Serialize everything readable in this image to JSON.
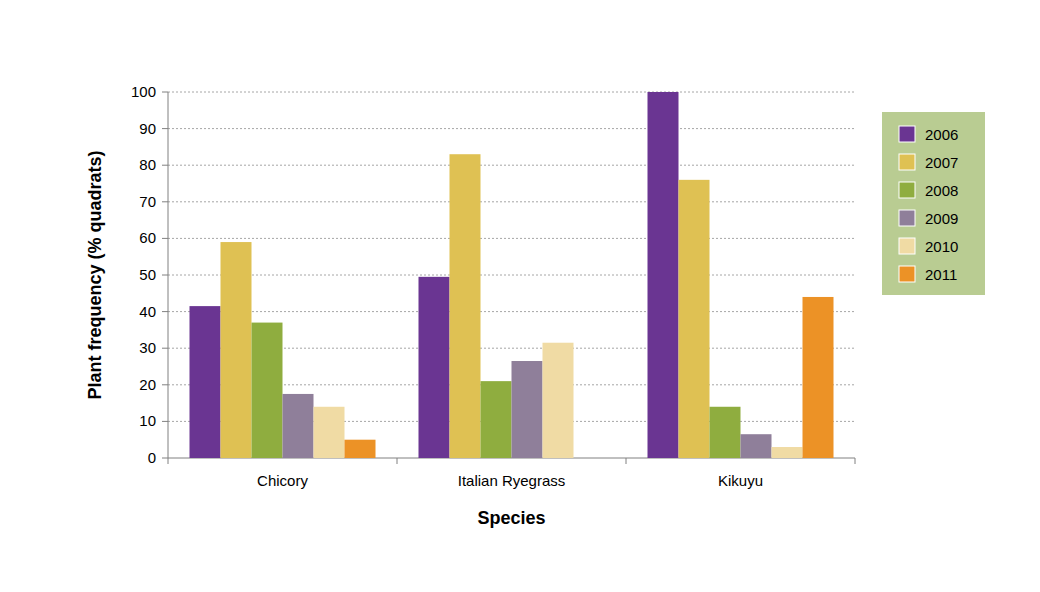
{
  "chart_data": {
    "type": "bar",
    "x_label": "Species",
    "y_label": "Plant frequency (% quadrats)",
    "categories": [
      "Chicory",
      "Italian Ryegrass",
      "Kikuyu"
    ],
    "series": [
      {
        "name": "2006",
        "color": "#6a3592",
        "values": [
          41.5,
          49.5,
          100
        ]
      },
      {
        "name": "2007",
        "color": "#dfc153",
        "values": [
          59,
          83,
          76
        ]
      },
      {
        "name": "2008",
        "color": "#8fad3f",
        "values": [
          37,
          21,
          14
        ]
      },
      {
        "name": "2009",
        "color": "#8f7f9a",
        "values": [
          17.5,
          26.5,
          6.5
        ]
      },
      {
        "name": "2010",
        "color": "#f0dba4",
        "values": [
          14,
          31.5,
          3
        ]
      },
      {
        "name": "2011",
        "color": "#ec9226",
        "values": [
          5,
          null,
          44
        ]
      }
    ],
    "ylim": [
      0,
      100
    ],
    "yticks": [
      0,
      10,
      20,
      30,
      40,
      50,
      60,
      70,
      80,
      90,
      100
    ],
    "grid": true,
    "legend": "right"
  }
}
